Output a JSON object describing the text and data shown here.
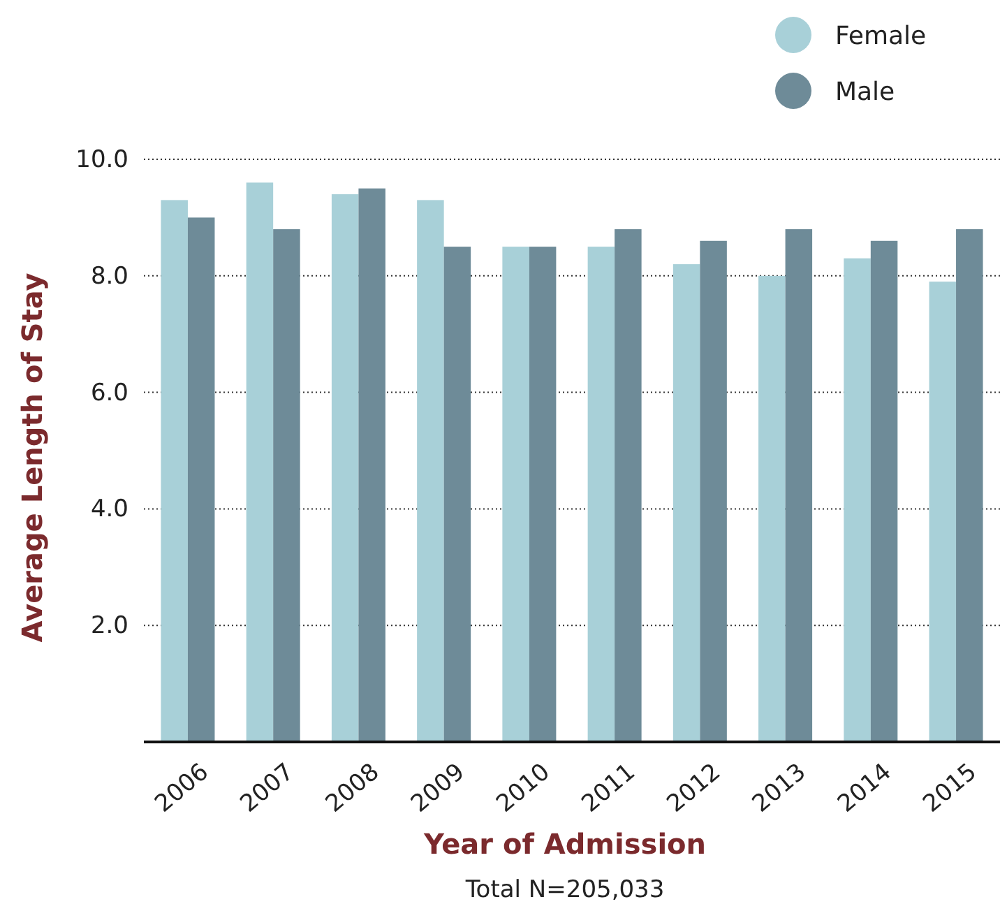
{
  "chart_data": {
    "type": "bar",
    "xlabel": "Year of Admission",
    "ylabel": "Average Length of Stay",
    "categories": [
      "2006",
      "2007",
      "2008",
      "2009",
      "2010",
      "2011",
      "2012",
      "2013",
      "2014",
      "2015"
    ],
    "series": [
      {
        "name": "Female",
        "color": "#a8d0d8",
        "values": [
          9.3,
          9.6,
          9.4,
          9.3,
          8.5,
          8.5,
          8.2,
          8.0,
          8.3,
          7.9
        ]
      },
      {
        "name": "Male",
        "color": "#6e8b98",
        "values": [
          9.0,
          8.8,
          9.5,
          8.5,
          8.5,
          8.8,
          8.6,
          8.8,
          8.6,
          8.8
        ]
      }
    ],
    "ylim": [
      0,
      10
    ],
    "yticks": [
      {
        "value": 2,
        "label": "2.0"
      },
      {
        "value": 4,
        "label": "4.0"
      },
      {
        "value": 6,
        "label": "6.0"
      },
      {
        "value": 8,
        "label": "8.0"
      },
      {
        "value": 10,
        "label": "10.0"
      }
    ],
    "grid": "y",
    "legend": "top right",
    "marker": "circle",
    "annotations": [
      "Total N=205,033"
    ]
  }
}
